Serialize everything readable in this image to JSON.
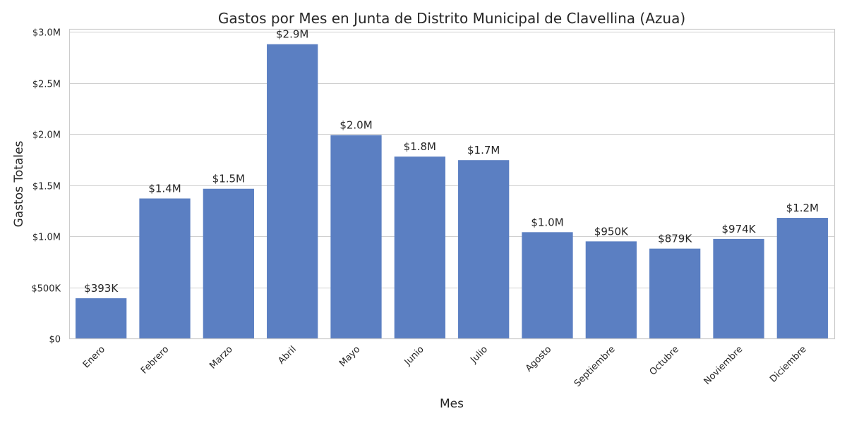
{
  "chart_data": {
    "type": "bar",
    "title": "Gastos por Mes en Junta de Distrito Municipal de Clavellina (Azua)",
    "xlabel": "Mes",
    "ylabel": "Gastos Totales",
    "categories": [
      "Enero",
      "Febrero",
      "Marzo",
      "Abril",
      "Mayo",
      "Junio",
      "Julio",
      "Agosto",
      "Septiembre",
      "Octubre",
      "Noviembre",
      "Diciembre"
    ],
    "values": [
      393000,
      1370000,
      1465000,
      2880000,
      1990000,
      1780000,
      1745000,
      1040000,
      950000,
      879000,
      974000,
      1180000
    ],
    "data_labels": [
      "$393K",
      "$1.4M",
      "$1.5M",
      "$2.9M",
      "$2.0M",
      "$1.8M",
      "$1.7M",
      "$1.0M",
      "$950K",
      "$879K",
      "$974K",
      "$1.2M"
    ],
    "yticks": [
      0,
      500000,
      1000000,
      1500000,
      2000000,
      2500000,
      3000000
    ],
    "ytick_labels": [
      "$0",
      "$500K",
      "$1.0M",
      "$1.5M",
      "$2.0M",
      "$2.5M",
      "$3.0M"
    ],
    "ylim": [
      0,
      3030000
    ],
    "grid": true,
    "legend": "none",
    "bar_color": "#5b7fc2"
  }
}
